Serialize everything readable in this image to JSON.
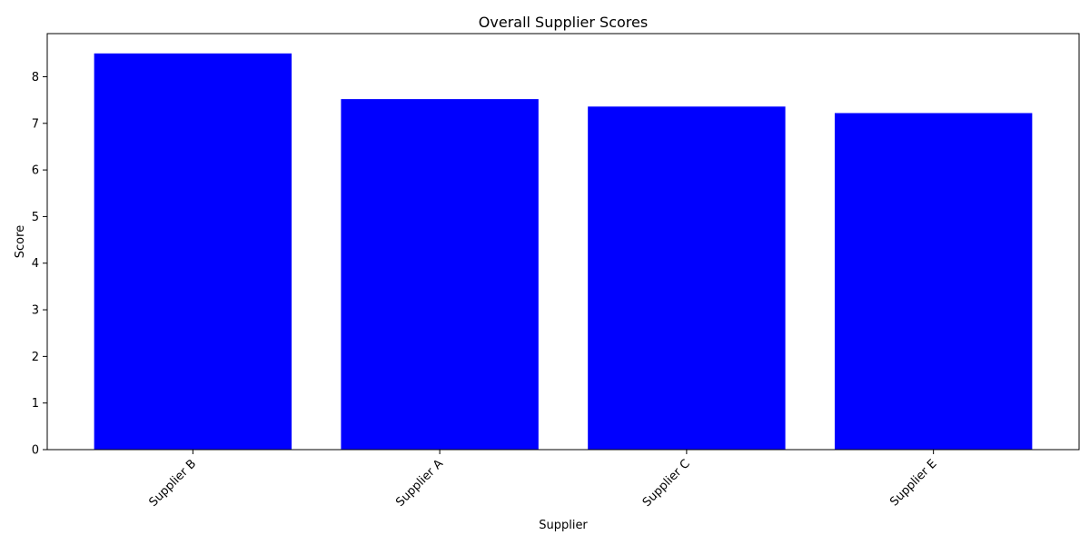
{
  "chart_data": {
    "type": "bar",
    "title": "Overall Supplier Scores",
    "xlabel": "Supplier",
    "ylabel": "Score",
    "categories": [
      "Supplier B",
      "Supplier A",
      "Supplier C",
      "Supplier E"
    ],
    "values": [
      8.5,
      7.52,
      7.36,
      7.22
    ],
    "ylim": [
      0,
      8.925
    ],
    "yticks": [
      0,
      1,
      2,
      3,
      4,
      5,
      6,
      7,
      8
    ],
    "grid": false,
    "bar_color": "#0000ff",
    "xtick_rotation": "45 degrees, right-aligned"
  }
}
